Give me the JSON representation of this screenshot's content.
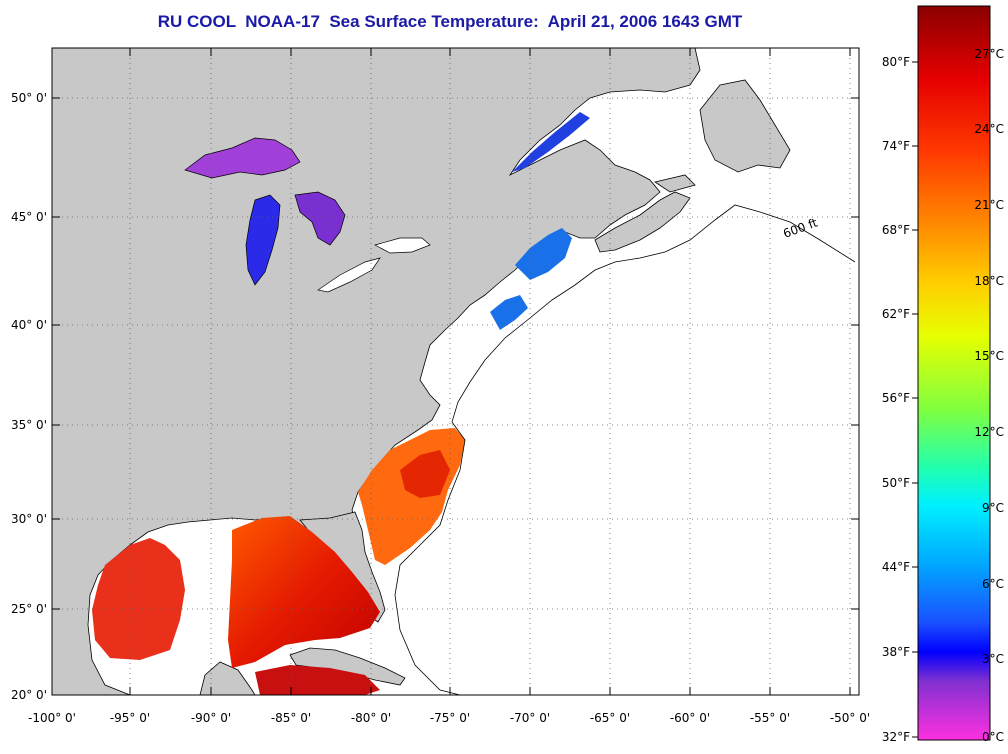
{
  "title": "RU COOL  NOAA-17  Sea Surface Temperature:  April 21, 2006 1643 GMT",
  "map": {
    "lat_labels": [
      "50° 0'",
      "45° 0'",
      "40° 0'",
      "35° 0'",
      "30° 0'",
      "25° 0'",
      "20° 0'"
    ],
    "lon_labels": [
      "-100° 0'",
      "-95° 0'",
      "-90° 0'",
      "-85° 0'",
      "-80° 0'",
      "-75° 0'",
      "-70° 0'",
      "-65° 0'",
      "-60° 0'",
      "-55° 0'",
      "-50° 0'"
    ],
    "isobath_label": "600 ft",
    "colors": {
      "land": "#c8c8c8",
      "ocean": "#ffffff",
      "frame": "#000000"
    }
  },
  "colorbar": {
    "f_labels": [
      "80°F",
      "74°F",
      "68°F",
      "62°F",
      "56°F",
      "50°F",
      "44°F",
      "38°F",
      "32°F"
    ],
    "c_labels": [
      "27°C",
      "24°C",
      "21°C",
      "18°C",
      "15°C",
      "12°C",
      "9°C",
      "6°C",
      "3°C",
      "0°C"
    ]
  }
}
